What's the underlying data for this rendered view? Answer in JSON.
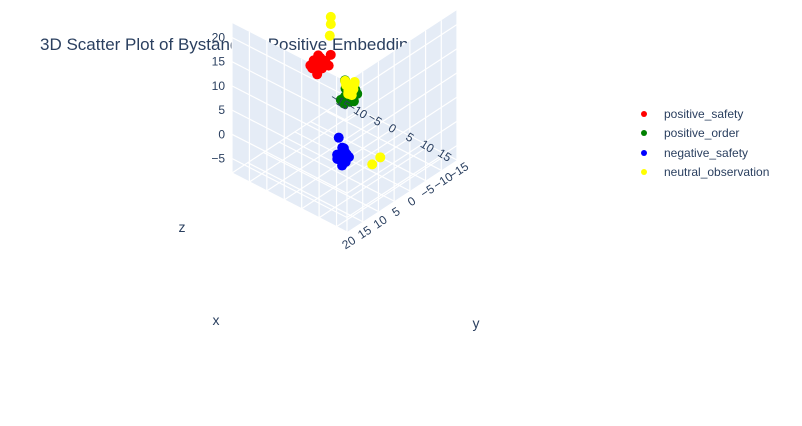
{
  "chart_data": {
    "type": "scatter",
    "title": "3D Scatter Plot of Bystanders Positive Embeddings",
    "axes": {
      "x": {
        "label": "x",
        "ticks": [
          "−15",
          "−10",
          "−5",
          "0",
          "5",
          "10",
          "15"
        ]
      },
      "y": {
        "label": "y",
        "ticks": [
          "−15",
          "−10",
          "−5",
          "0",
          "5",
          "10",
          "15",
          "20"
        ]
      },
      "z": {
        "label": "z",
        "ticks": [
          "−5",
          "0",
          "5",
          "10",
          "15",
          "20"
        ]
      }
    },
    "grid": true,
    "legend_position": "top-right",
    "series": [
      {
        "name": "positive_safety",
        "color": "#ff0000",
        "points": [
          [
            -11,
            -2,
            6
          ],
          [
            -10,
            -2,
            7
          ],
          [
            -10.5,
            -1,
            8
          ],
          [
            -9,
            -2,
            6.5
          ],
          [
            -9.5,
            -3,
            7.5
          ],
          [
            -11.5,
            -1.5,
            6
          ],
          [
            -10,
            0,
            7
          ],
          [
            -8.5,
            -2.5,
            8
          ],
          [
            -11,
            -3,
            8
          ],
          [
            -9.5,
            -1,
            5.5
          ],
          [
            -10.5,
            -2.5,
            6.5
          ],
          [
            -9,
            -0.5,
            7.5
          ],
          [
            -8,
            -3,
            7
          ],
          [
            -11,
            -0.5,
            7
          ],
          [
            -9.5,
            -2,
            8.5
          ],
          [
            -10.2,
            -1.8,
            5.8
          ],
          [
            -8.8,
            -1.2,
            6.8
          ],
          [
            -2,
            3,
            14
          ]
        ]
      },
      {
        "name": "positive_order",
        "color": "#008000",
        "points": [
          [
            5,
            4,
            9
          ],
          [
            5.5,
            5,
            10
          ],
          [
            6,
            4.5,
            8
          ],
          [
            5.2,
            6,
            9.5
          ],
          [
            4.5,
            5.5,
            10.5
          ],
          [
            6.2,
            5,
            9
          ],
          [
            5.8,
            3.8,
            10
          ],
          [
            4.8,
            4.2,
            8.5
          ],
          [
            5,
            6.5,
            8
          ],
          [
            6.5,
            4,
            9.5
          ],
          [
            5.5,
            4.8,
            11
          ],
          [
            4.6,
            5.8,
            9
          ],
          [
            6,
            6,
            10
          ],
          [
            5.3,
            3.5,
            9
          ],
          [
            5.7,
            5.5,
            8.2
          ],
          [
            0,
            2,
            5
          ],
          [
            3,
            4,
            11
          ]
        ]
      },
      {
        "name": "negative_safety",
        "color": "#0000ff",
        "points": [
          [
            8,
            10,
            -1
          ],
          [
            8.5,
            11,
            0
          ],
          [
            9,
            10.5,
            1
          ],
          [
            7.5,
            11.5,
            0.5
          ],
          [
            9.5,
            11,
            -0.5
          ],
          [
            8,
            12,
            0
          ],
          [
            9,
            12,
            1
          ],
          [
            8.5,
            9.5,
            0
          ],
          [
            10,
            10.5,
            0.5
          ],
          [
            7.8,
            10.2,
            1.5
          ],
          [
            9.2,
            11.8,
            -1
          ],
          [
            8.8,
            10.8,
            2
          ],
          [
            3,
            6,
            0
          ]
        ]
      },
      {
        "name": "neutral_observation",
        "color": "#ffff00",
        "points": [
          [
            -2,
            -3,
            5
          ],
          [
            -1.5,
            -2,
            4
          ],
          [
            -1,
            -3.5,
            6
          ],
          [
            -2.5,
            -2.5,
            5.5
          ],
          [
            -0.5,
            -2,
            4.5
          ],
          [
            -1.8,
            -4,
            4
          ],
          [
            -1,
            -1.5,
            5
          ],
          [
            -2.2,
            -1.8,
            6.5
          ],
          [
            -1.2,
            -2.8,
            3.5
          ],
          [
            -3,
            -3,
            4.8
          ],
          [
            -0.8,
            -3.2,
            5.8
          ],
          [
            -14,
            -10,
            8
          ],
          [
            -1.8,
            3.2,
            22
          ],
          [
            -1.8,
            3.2,
            20.5
          ],
          [
            5,
            -5,
            -8
          ],
          [
            9,
            2,
            -5
          ]
        ]
      }
    ]
  }
}
